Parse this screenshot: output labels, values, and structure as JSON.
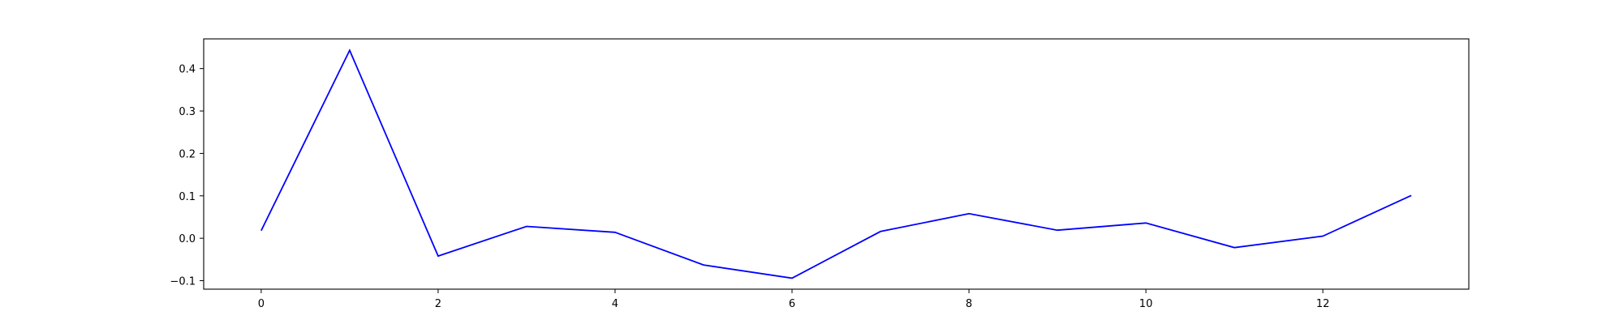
{
  "chart_data": {
    "type": "line",
    "title": "",
    "xlabel": "",
    "ylabel": "",
    "x": [
      0,
      1,
      2,
      3,
      4,
      5,
      6,
      7,
      8,
      9,
      10,
      11,
      12,
      13
    ],
    "series": [
      {
        "values": [
          0.018,
          0.443,
          -0.042,
          0.028,
          0.014,
          -0.063,
          -0.094,
          0.016,
          0.058,
          0.019,
          0.036,
          -0.022,
          0.005,
          0.101
        ],
        "color": "#0000ff"
      }
    ],
    "xlim": [
      -0.65,
      13.65
    ],
    "ylim": [
      -0.12,
      0.47
    ],
    "xticks": [
      0,
      2,
      4,
      6,
      8,
      10,
      12
    ],
    "xtick_labels": [
      "0",
      "2",
      "4",
      "6",
      "8",
      "10",
      "12"
    ],
    "yticks": [
      -0.1,
      0.0,
      0.1,
      0.2,
      0.3,
      0.4
    ],
    "ytick_labels": [
      "−0.1",
      "0.0",
      "0.1",
      "0.2",
      "0.3",
      "0.4"
    ],
    "grid": false,
    "legend": false
  }
}
